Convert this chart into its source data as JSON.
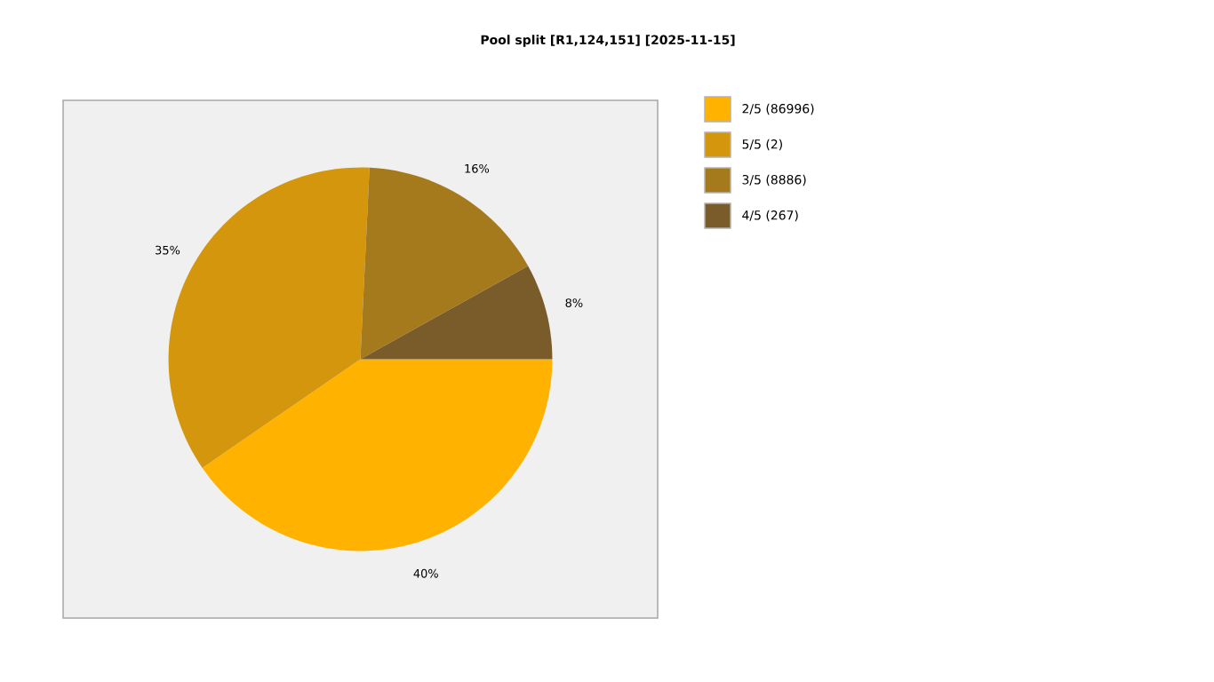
{
  "chart_data": {
    "type": "pie",
    "title": "Pool split [R1,124,151] [2025-11-15]",
    "categories": [
      "2/5 (86996)",
      "5/5 (2)",
      "3/5 (8886)",
      "4/5 (267)"
    ],
    "values": [
      40,
      35,
      16,
      8
    ],
    "value_labels": [
      "40%",
      "35%",
      "16%",
      "8%"
    ],
    "colors": [
      "#ffb300",
      "#d4960c",
      "#a57a1c",
      "#7a5c2a"
    ],
    "legend": "top right"
  }
}
